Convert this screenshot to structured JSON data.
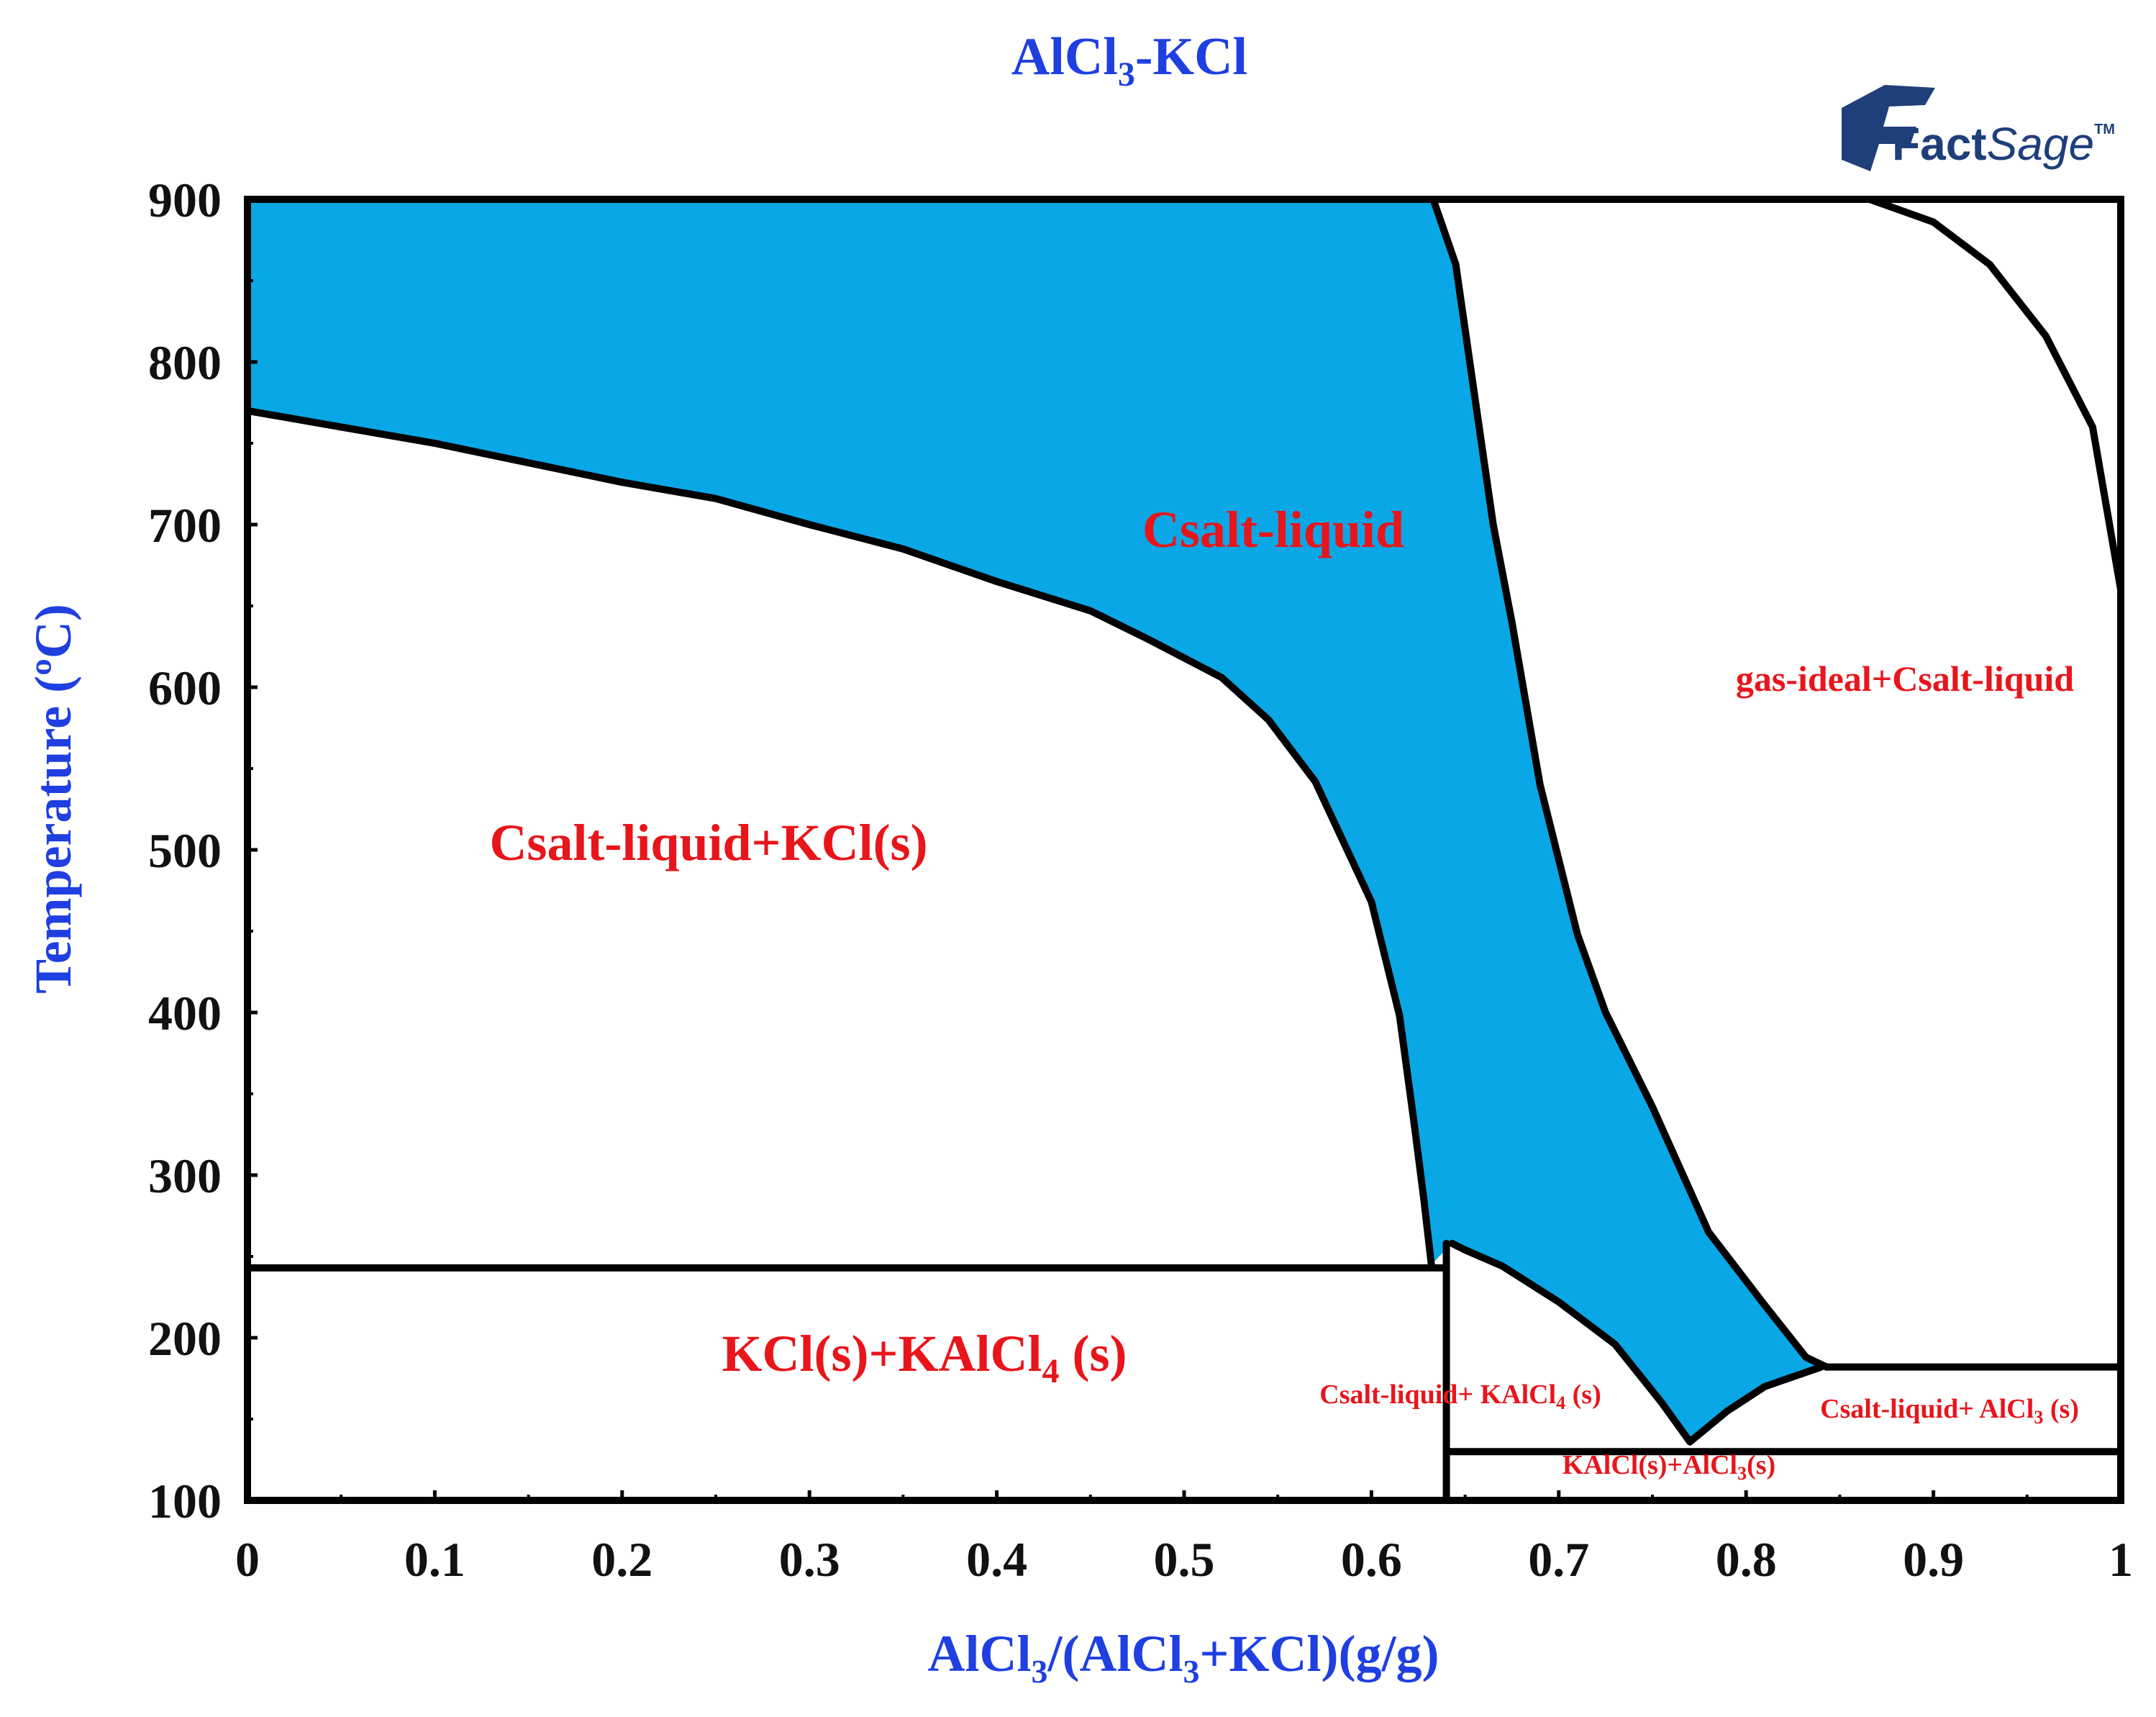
{
  "colors": {
    "title": "#1f3fe0",
    "axis_label": "#1f3fe0",
    "region_label": "#e8151b",
    "liquid_fill": "#0aa7e6",
    "line": "#000000",
    "logo": "#1f3f7a"
  },
  "logo": {
    "text_fact": "Fact",
    "text_sage": "Sage",
    "text_tm": "TM"
  },
  "chart_data": {
    "type": "phase-diagram",
    "title": {
      "pre": "AlCl",
      "sub": "3",
      "post": "-KCl"
    },
    "xlabel": {
      "p1": "AlCl",
      "s1": "3",
      "p2": "/(AlCl",
      "s2": "3",
      "p3": "+KCl)(g/g)"
    },
    "ylabel": "Temperature (ºC)",
    "xlim": [
      0,
      1
    ],
    "ylim": [
      100,
      900
    ],
    "xticks": [
      0,
      0.1,
      0.2,
      0.3,
      0.4,
      0.5,
      0.6,
      0.7,
      0.8,
      0.9,
      1
    ],
    "xtick_labels": [
      "0",
      "0.1",
      "0.2",
      "0.3",
      "0.4",
      "0.5",
      "0.6",
      "0.7",
      "0.8",
      "0.9",
      "1"
    ],
    "yticks": [
      100,
      200,
      300,
      400,
      500,
      600,
      700,
      800,
      900
    ],
    "ytick_labels": [
      "100",
      "200",
      "300",
      "400",
      "500",
      "600",
      "700",
      "800",
      "900"
    ],
    "curves": {
      "kcl_liquidus": [
        [
          0,
          770
        ],
        [
          0.05,
          760
        ],
        [
          0.1,
          750
        ],
        [
          0.15,
          738
        ],
        [
          0.2,
          726
        ],
        [
          0.25,
          716
        ],
        [
          0.3,
          700
        ],
        [
          0.35,
          685
        ],
        [
          0.4,
          665
        ],
        [
          0.45,
          647
        ],
        [
          0.48,
          630
        ],
        [
          0.52,
          606
        ],
        [
          0.545,
          580
        ],
        [
          0.57,
          542
        ],
        [
          0.6,
          468
        ],
        [
          0.615,
          398
        ],
        [
          0.623,
          330
        ],
        [
          0.628,
          285
        ],
        [
          0.632,
          245
        ]
      ],
      "right_liquidus": [
        [
          0.633,
          900
        ],
        [
          0.645,
          860
        ],
        [
          0.655,
          780
        ],
        [
          0.665,
          700
        ],
        [
          0.675,
          640
        ],
        [
          0.69,
          540
        ],
        [
          0.71,
          448
        ],
        [
          0.725,
          400
        ],
        [
          0.75,
          342
        ],
        [
          0.78,
          265
        ],
        [
          0.81,
          220
        ],
        [
          0.832,
          188
        ],
        [
          0.843,
          182
        ]
      ],
      "kalcl4_liquidus": [
        [
          0.643,
          258
        ],
        [
          0.65,
          254
        ],
        [
          0.67,
          244
        ],
        [
          0.7,
          222
        ],
        [
          0.73,
          196
        ],
        [
          0.755,
          160
        ],
        [
          0.77,
          136
        ]
      ],
      "alcl3_liquidus": [
        [
          0.77,
          136
        ],
        [
          0.79,
          155
        ],
        [
          0.81,
          170
        ],
        [
          0.84,
          182
        ]
      ],
      "gas_boundary": [
        [
          0.866,
          900
        ],
        [
          0.9,
          886
        ],
        [
          0.93,
          860
        ],
        [
          0.96,
          816
        ],
        [
          0.985,
          760
        ],
        [
          1.0,
          660
        ]
      ],
      "eutectic_kcl_kalcl4": {
        "t": 243,
        "x1": 0,
        "x2": 0.64
      },
      "eutectic_kalcl4_alcl3": {
        "t": 130,
        "x1": 0.64,
        "x2": 1
      },
      "peritectic_alcl3": {
        "t": 182,
        "x1": 0.843,
        "x2": 1
      },
      "kalcl4_compound_x": 0.64
    },
    "regions": [
      {
        "name": "Csalt-liquid",
        "x": 0.55,
        "t": 700
      },
      {
        "name": "Csalt-liquid+KCl(s)",
        "x": 0.245,
        "t": 500
      },
      {
        "name": "gas-ideal+Csalt-liquid",
        "x": 0.83,
        "t": 604
      },
      {
        "name": "Csalt-liquid+ AlCl3 (s)",
        "x": 0.91,
        "t": 150
      }
    ],
    "region_labels": {
      "liquid": "Csalt-liquid",
      "kcl_liquid": "Csalt-liquid+KCl(s)",
      "gas_liquid": "gas-ideal+Csalt-liquid",
      "kcl_kalcl4": {
        "pre": "KCl(s)+KAlCl",
        "sub": "4",
        "post": " (s)"
      },
      "liquid_kalcl4": {
        "pre": "Csalt-liquid+ KAlCl",
        "sub": "4",
        "post": " (s)"
      },
      "liquid_alcl3": {
        "pre": "Csalt-liquid+ AlCl",
        "sub": "3",
        "post": " (s)"
      },
      "kalcl4_alcl3": {
        "pre": "KAlCl(s)+AlCl",
        "sub": "3",
        "post": "(s)"
      }
    }
  }
}
